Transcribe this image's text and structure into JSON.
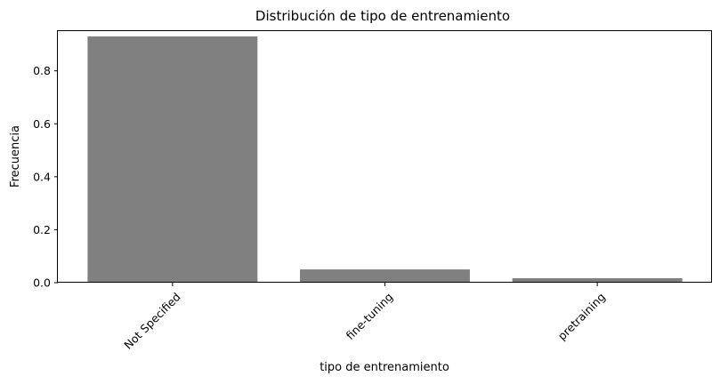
{
  "chart_data": {
    "type": "bar",
    "title": "Distribución de tipo de entrenamiento",
    "xlabel": "tipo de entrenamiento",
    "ylabel": "Frecuencia",
    "categories": [
      "Not Specified",
      "fine-tuning",
      "pretraining"
    ],
    "values": [
      0.93,
      0.05,
      0.017
    ],
    "ylim": [
      0,
      0.95
    ],
    "yticks": [
      "0.0",
      "0.2",
      "0.4",
      "0.6",
      "0.8"
    ],
    "bar_color": "#808080",
    "grid": false,
    "legend": "none"
  }
}
